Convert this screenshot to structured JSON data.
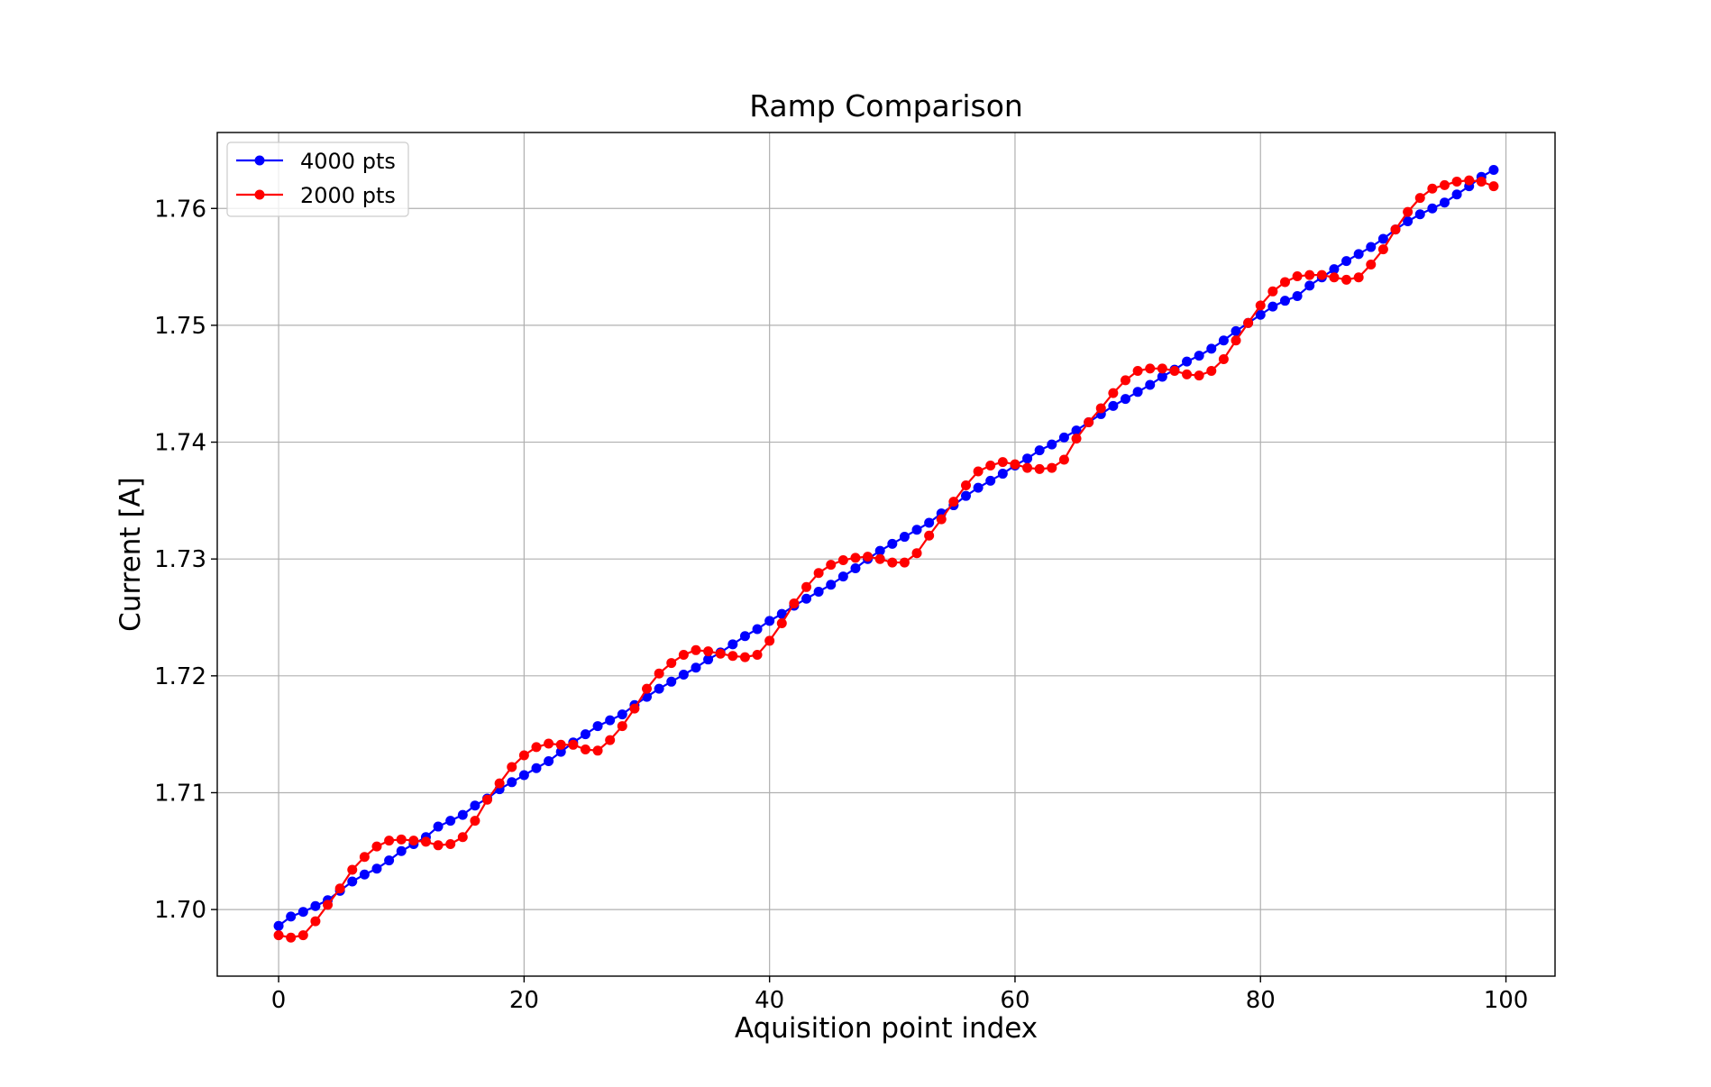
{
  "chart_data": {
    "type": "line",
    "title": "Ramp Comparison",
    "xlabel": "Aquisition point index",
    "ylabel": "Current [A]",
    "xlim": [
      -5,
      104
    ],
    "ylim": [
      1.6943,
      1.7665
    ],
    "xticks": [
      0,
      20,
      40,
      60,
      80,
      100
    ],
    "yticks": [
      1.7,
      1.71,
      1.72,
      1.73,
      1.74,
      1.75,
      1.76
    ],
    "xtick_labels": [
      "0",
      "20",
      "40",
      "60",
      "80",
      "100"
    ],
    "ytick_labels": [
      "1.70",
      "1.71",
      "1.72",
      "1.73",
      "1.74",
      "1.75",
      "1.76"
    ],
    "grid": true,
    "legend_position": "top-left",
    "marker": "circle",
    "x": [
      0,
      1,
      2,
      3,
      4,
      5,
      6,
      7,
      8,
      9,
      10,
      11,
      12,
      13,
      14,
      15,
      16,
      17,
      18,
      19,
      20,
      21,
      22,
      23,
      24,
      25,
      26,
      27,
      28,
      29,
      30,
      31,
      32,
      33,
      34,
      35,
      36,
      37,
      38,
      39,
      40,
      41,
      42,
      43,
      44,
      45,
      46,
      47,
      48,
      49,
      50,
      51,
      52,
      53,
      54,
      55,
      56,
      57,
      58,
      59,
      60,
      61,
      62,
      63,
      64,
      65,
      66,
      67,
      68,
      69,
      70,
      71,
      72,
      73,
      74,
      75,
      76,
      77,
      78,
      79,
      80,
      81,
      82,
      83,
      84,
      85,
      86,
      87,
      88,
      89,
      90,
      91,
      92,
      93,
      94,
      95,
      96,
      97,
      98,
      99
    ],
    "series": [
      {
        "name": "4000 pts",
        "color": "#0000ff",
        "values": [
          1.6986,
          1.6994,
          1.6998,
          1.7003,
          1.7008,
          1.7016,
          1.7024,
          1.703,
          1.7035,
          1.7042,
          1.705,
          1.7056,
          1.7062,
          1.7071,
          1.7076,
          1.7081,
          1.7089,
          1.7095,
          1.7103,
          1.7109,
          1.7115,
          1.7121,
          1.7127,
          1.7135,
          1.7143,
          1.715,
          1.7157,
          1.7162,
          1.7167,
          1.7175,
          1.7182,
          1.7189,
          1.7195,
          1.7201,
          1.7207,
          1.7214,
          1.722,
          1.7227,
          1.7234,
          1.724,
          1.7247,
          1.7253,
          1.726,
          1.7266,
          1.7272,
          1.7278,
          1.7285,
          1.7292,
          1.73,
          1.7307,
          1.7313,
          1.7319,
          1.7325,
          1.7331,
          1.7339,
          1.7346,
          1.7354,
          1.7361,
          1.7367,
          1.7373,
          1.738,
          1.7386,
          1.7393,
          1.7398,
          1.7404,
          1.741,
          1.7417,
          1.7424,
          1.7431,
          1.7437,
          1.7443,
          1.7449,
          1.7456,
          1.7462,
          1.7469,
          1.7474,
          1.748,
          1.7487,
          1.7495,
          1.7502,
          1.7509,
          1.7516,
          1.7521,
          1.7525,
          1.7534,
          1.7541,
          1.7548,
          1.7555,
          1.7561,
          1.7567,
          1.7574,
          1.7582,
          1.7589,
          1.7595,
          1.76,
          1.7605,
          1.7612,
          1.7619,
          1.7627,
          1.7633
        ]
      },
      {
        "name": "2000 pts",
        "color": "#ff0000",
        "values": [
          1.6978,
          1.6976,
          1.6978,
          1.699,
          1.7004,
          1.7018,
          1.7034,
          1.7045,
          1.7054,
          1.7059,
          1.706,
          1.7059,
          1.7058,
          1.7055,
          1.7056,
          1.7062,
          1.7076,
          1.7094,
          1.7108,
          1.7122,
          1.7132,
          1.7139,
          1.7142,
          1.7141,
          1.7141,
          1.7137,
          1.7136,
          1.7145,
          1.7157,
          1.7172,
          1.7189,
          1.7202,
          1.7211,
          1.7218,
          1.7222,
          1.7221,
          1.7219,
          1.7217,
          1.7216,
          1.7218,
          1.723,
          1.7245,
          1.7262,
          1.7276,
          1.7288,
          1.7295,
          1.7299,
          1.7301,
          1.7302,
          1.73,
          1.7297,
          1.7297,
          1.7305,
          1.732,
          1.7334,
          1.7349,
          1.7363,
          1.7375,
          1.738,
          1.7383,
          1.7381,
          1.7378,
          1.7377,
          1.7378,
          1.7385,
          1.7403,
          1.7417,
          1.7429,
          1.7442,
          1.7453,
          1.7461,
          1.7463,
          1.7463,
          1.7461,
          1.7458,
          1.7457,
          1.7461,
          1.7471,
          1.7487,
          1.7502,
          1.7517,
          1.7529,
          1.7537,
          1.7542,
          1.7543,
          1.7543,
          1.7541,
          1.7539,
          1.7541,
          1.7552,
          1.7565,
          1.7582,
          1.7597,
          1.7609,
          1.7617,
          1.762,
          1.7623,
          1.7624,
          1.7623,
          1.7619
        ]
      }
    ]
  }
}
